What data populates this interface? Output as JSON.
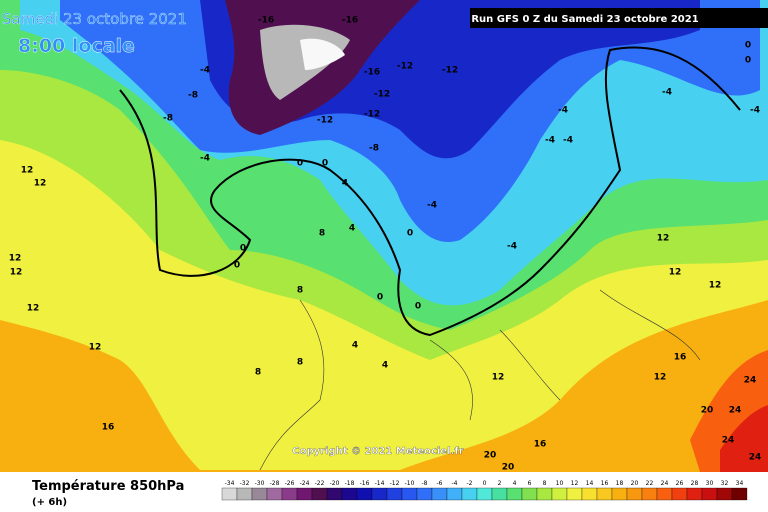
{
  "header": {
    "date": "Samedi 23 octobre 2021",
    "time": "8:00 locale",
    "run": "Run GFS 0 Z du Samedi 23 octobre 2021"
  },
  "footer": {
    "title": "Température 850hPa",
    "subtitle": "(+ 6h)",
    "copyright": "Copyright © 2021 Meteociel.fr"
  },
  "legend": {
    "values": [
      -34,
      -32,
      -30,
      -28,
      -26,
      -24,
      -22,
      -20,
      -18,
      -16,
      -14,
      -12,
      -10,
      -8,
      -6,
      -4,
      -2,
      0,
      2,
      4,
      6,
      8,
      10,
      12,
      14,
      16,
      18,
      20,
      22,
      24,
      26,
      28,
      30,
      32,
      34
    ],
    "colors": [
      "#d8d8d8",
      "#b8b8b8",
      "#988898",
      "#a06aa0",
      "#8a3c8a",
      "#701870",
      "#501050",
      "#300870",
      "#1c0890",
      "#1010b0",
      "#1828c8",
      "#2040e0",
      "#2858f0",
      "#3070f8",
      "#3890f8",
      "#40b0f8",
      "#48d0f0",
      "#50e8d8",
      "#48e0a0",
      "#58e070",
      "#80e050",
      "#a8e840",
      "#d0f040",
      "#f0f040",
      "#f8e030",
      "#f8c820",
      "#f8b010",
      "#f89810",
      "#f88010",
      "#f86010",
      "#f04010",
      "#e02010",
      "#c81010",
      "#a00808",
      "#700000"
    ]
  },
  "map": {
    "labels": [
      -16,
      -16,
      -12,
      -12,
      -12,
      -12,
      -12,
      -16,
      -8,
      -8,
      -8,
      -4,
      -4,
      -4,
      -4,
      -4,
      -4,
      -4,
      -4,
      -4,
      0,
      0,
      0,
      0,
      0,
      0,
      0,
      0,
      0,
      4,
      4,
      8,
      8,
      8,
      12,
      12,
      12,
      12,
      12,
      12,
      12,
      12,
      12,
      12,
      12,
      16,
      16,
      16,
      20,
      20,
      20,
      24,
      24,
      24,
      24,
      8,
      4,
      4
    ]
  }
}
